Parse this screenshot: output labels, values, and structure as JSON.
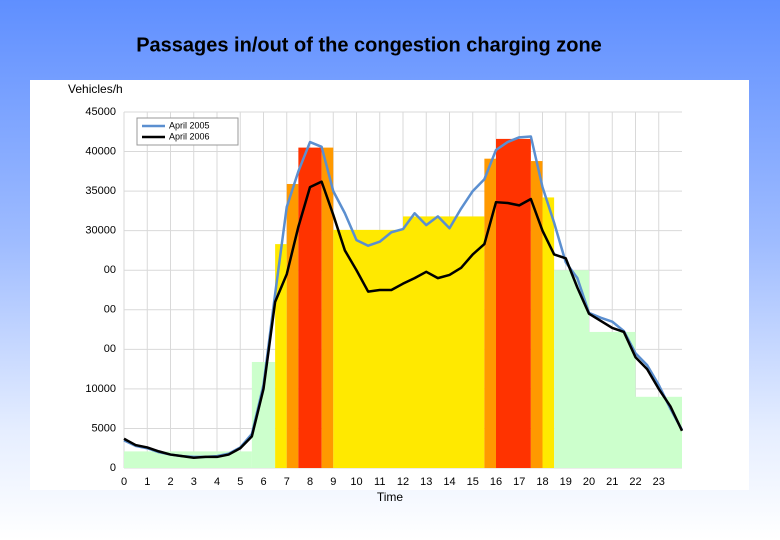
{
  "chart_data": {
    "type": "line",
    "title": "Passages in/out of the congestion charging zone",
    "y_label": "Vehicles/h",
    "x_label": "Time",
    "xlim": [
      0,
      24
    ],
    "xticks": [
      0,
      1,
      2,
      3,
      4,
      5,
      6,
      7,
      8,
      9,
      10,
      11,
      12,
      13,
      14,
      15,
      16,
      17,
      18,
      19,
      20,
      21,
      22,
      23
    ],
    "ylim": [
      0,
      45000
    ],
    "yticks": [
      0,
      5000,
      10000,
      {
        "value": 15000,
        "label": "00"
      },
      {
        "value": 20000,
        "label": "00"
      },
      {
        "value": 25000,
        "label": "00"
      },
      30000,
      35000,
      40000,
      45000
    ],
    "grid": true,
    "legend": "top-left",
    "bands": {
      "starts": [
        0,
        5.5,
        6.5,
        7,
        7.5,
        8.5,
        9,
        12,
        15.5,
        16,
        17.5,
        18,
        18.5,
        20,
        22
      ],
      "ends": [
        5.5,
        6.5,
        7,
        7.5,
        8.5,
        9,
        12,
        15.5,
        16,
        17.5,
        18,
        18.5,
        20,
        22,
        24
      ],
      "values": [
        2100,
        13400,
        28300,
        35900,
        40500,
        40500,
        30100,
        31800,
        39100,
        41600,
        38800,
        34200,
        25000,
        17200,
        9000
      ],
      "colors": [
        "#ccffcc",
        "#ccffcc",
        "#ffe900",
        "#ff9900",
        "#ff3300",
        "#ff9900",
        "#ffe900",
        "#ffe900",
        "#ff9900",
        "#ff3300",
        "#ff9900",
        "#ffe900",
        "#ccffcc",
        "#ccffcc",
        "#ccffcc"
      ]
    },
    "x": [
      0,
      0.5,
      1,
      1.5,
      2,
      2.5,
      3,
      3.5,
      4,
      4.5,
      5,
      5.5,
      6,
      6.5,
      7,
      7.5,
      8,
      8.5,
      9,
      9.5,
      10,
      10.5,
      11,
      11.5,
      12,
      12.5,
      13,
      13.5,
      14,
      14.5,
      15,
      15.5,
      16,
      16.5,
      17,
      17.5,
      18,
      18.5,
      19,
      19.5,
      20,
      20.5,
      21,
      21.5,
      22,
      22.5,
      23,
      23.5,
      24
    ],
    "series": [
      {
        "name": "April 2005",
        "color": "#5b8fd0",
        "values": [
          3500,
          2800,
          2500,
          2000,
          1700,
          1500,
          1400,
          1400,
          1500,
          1800,
          2600,
          4300,
          10500,
          22000,
          33000,
          37500,
          41200,
          40600,
          35000,
          32200,
          28800,
          28100,
          28600,
          29800,
          30200,
          32200,
          30700,
          31800,
          30300,
          32800,
          35000,
          36500,
          40200,
          41200,
          41800,
          41900,
          35500,
          31000,
          26000,
          24000,
          19600,
          19000,
          18500,
          17300,
          14500,
          13000,
          10500,
          7500,
          4800
        ]
      },
      {
        "name": "April 2006",
        "color": "#000000",
        "values": [
          3700,
          2900,
          2600,
          2100,
          1700,
          1500,
          1300,
          1400,
          1400,
          1700,
          2500,
          4000,
          10000,
          21000,
          24500,
          30500,
          35500,
          36200,
          32000,
          27500,
          25000,
          22300,
          22500,
          22500,
          23300,
          24000,
          24800,
          24000,
          24400,
          25300,
          27000,
          28300,
          33600,
          33500,
          33200,
          34000,
          30000,
          27000,
          26500,
          22800,
          19500,
          18600,
          17700,
          17200,
          14000,
          12500,
          10000,
          7800,
          4700
        ]
      }
    ]
  }
}
